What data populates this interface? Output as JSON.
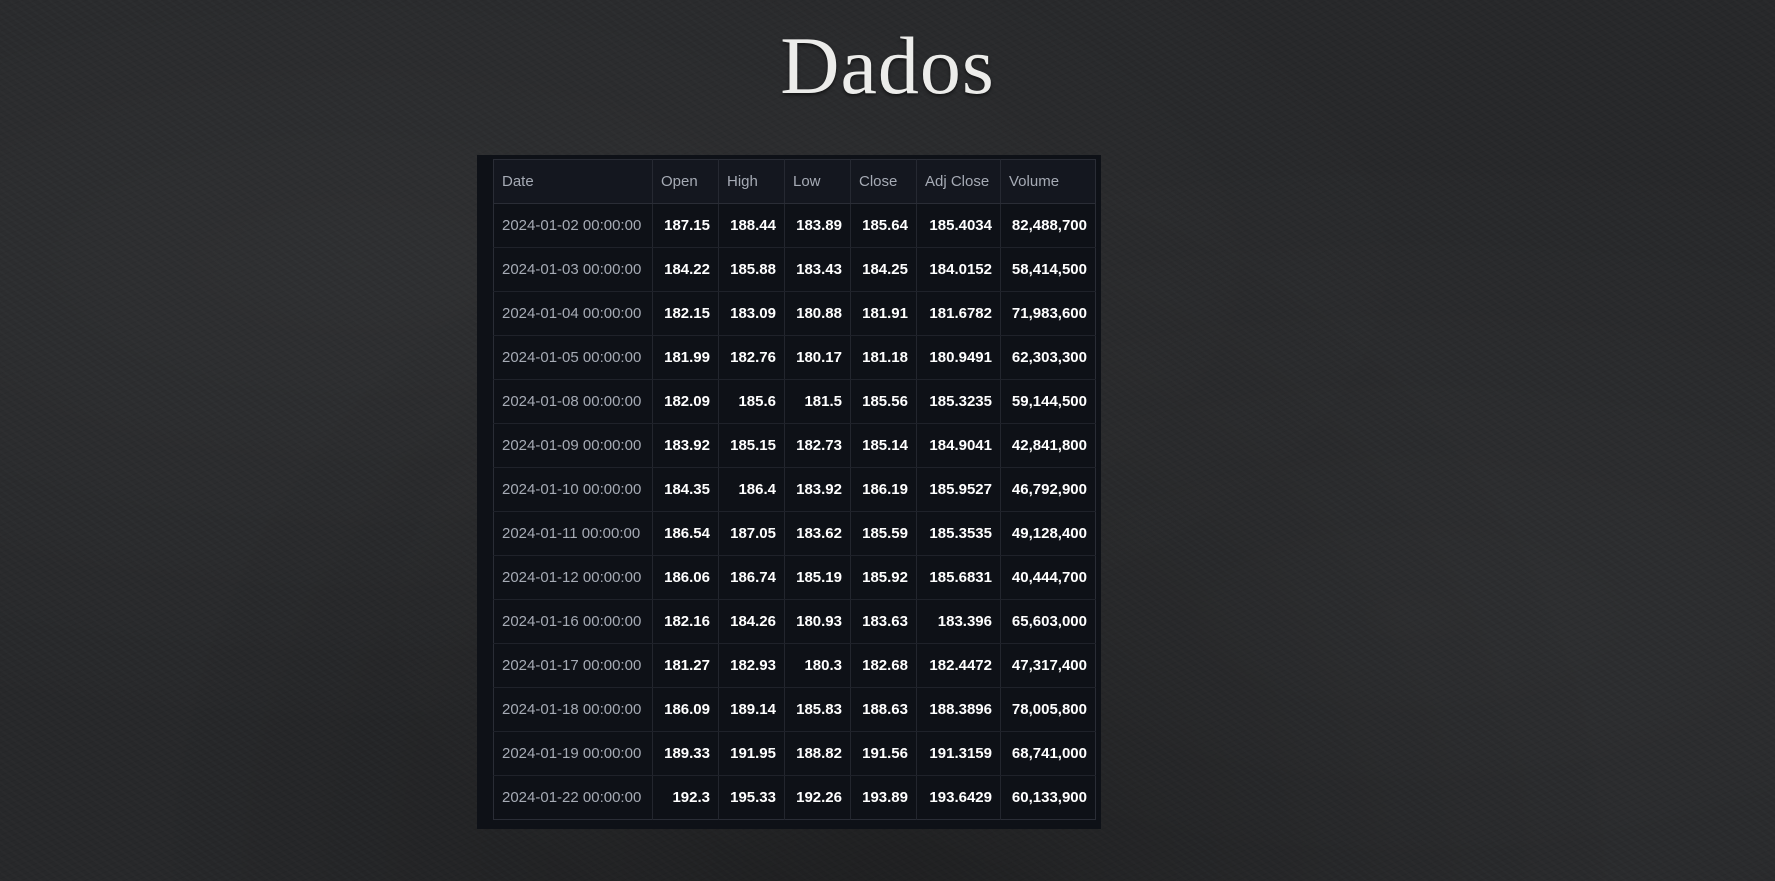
{
  "slide": {
    "title": "Dados"
  },
  "table": {
    "columns": [
      "Date",
      "Open",
      "High",
      "Low",
      "Close",
      "Adj Close",
      "Volume"
    ],
    "rows": [
      [
        "2024-01-02 00:00:00",
        "187.15",
        "188.44",
        "183.89",
        "185.64",
        "185.4034",
        "82,488,700"
      ],
      [
        "2024-01-03 00:00:00",
        "184.22",
        "185.88",
        "183.43",
        "184.25",
        "184.0152",
        "58,414,500"
      ],
      [
        "2024-01-04 00:00:00",
        "182.15",
        "183.09",
        "180.88",
        "181.91",
        "181.6782",
        "71,983,600"
      ],
      [
        "2024-01-05 00:00:00",
        "181.99",
        "182.76",
        "180.17",
        "181.18",
        "180.9491",
        "62,303,300"
      ],
      [
        "2024-01-08 00:00:00",
        "182.09",
        "185.6",
        "181.5",
        "185.56",
        "185.3235",
        "59,144,500"
      ],
      [
        "2024-01-09 00:00:00",
        "183.92",
        "185.15",
        "182.73",
        "185.14",
        "184.9041",
        "42,841,800"
      ],
      [
        "2024-01-10 00:00:00",
        "184.35",
        "186.4",
        "183.92",
        "186.19",
        "185.9527",
        "46,792,900"
      ],
      [
        "2024-01-11 00:00:00",
        "186.54",
        "187.05",
        "183.62",
        "185.59",
        "185.3535",
        "49,128,400"
      ],
      [
        "2024-01-12 00:00:00",
        "186.06",
        "186.74",
        "185.19",
        "185.92",
        "185.6831",
        "40,444,700"
      ],
      [
        "2024-01-16 00:00:00",
        "182.16",
        "184.26",
        "180.93",
        "183.63",
        "183.396",
        "65,603,000"
      ],
      [
        "2024-01-17 00:00:00",
        "181.27",
        "182.93",
        "180.3",
        "182.68",
        "182.4472",
        "47,317,400"
      ],
      [
        "2024-01-18 00:00:00",
        "186.09",
        "189.14",
        "185.83",
        "188.63",
        "188.3896",
        "78,005,800"
      ],
      [
        "2024-01-19 00:00:00",
        "189.33",
        "191.95",
        "188.82",
        "191.56",
        "191.3159",
        "68,741,000"
      ],
      [
        "2024-01-22 00:00:00",
        "192.3",
        "195.33",
        "192.26",
        "193.89",
        "193.6429",
        "60,133,900"
      ]
    ]
  }
}
